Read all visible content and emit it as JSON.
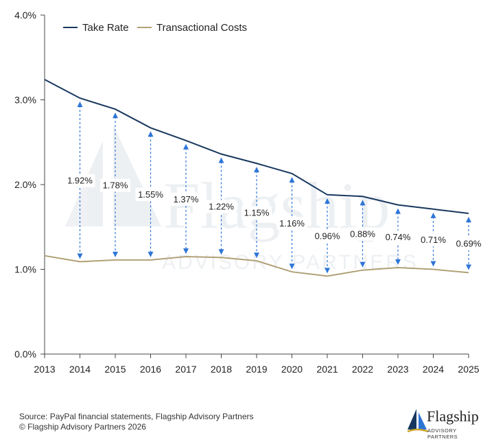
{
  "chart_data": {
    "type": "line",
    "title": "",
    "xlabel": "",
    "ylabel": "",
    "x": [
      2013,
      2014,
      2015,
      2016,
      2017,
      2018,
      2019,
      2020,
      2021,
      2022,
      2023,
      2024,
      2025
    ],
    "ylim": [
      0,
      4.0
    ],
    "y_ticks": [
      "0.0%",
      "1.0%",
      "2.0%",
      "3.0%",
      "4.0%"
    ],
    "y_tick_values": [
      0,
      1,
      2,
      3,
      4
    ],
    "legend_position": "top-left",
    "series": [
      {
        "name": "Take Rate",
        "color": "#17375e",
        "values": [
          3.24,
          3.02,
          2.89,
          2.67,
          2.52,
          2.36,
          2.25,
          2.13,
          1.88,
          1.86,
          1.76,
          1.71,
          1.66
        ]
      },
      {
        "name": "Transactional Costs",
        "color": "#b0a075",
        "values": [
          1.16,
          1.09,
          1.11,
          1.11,
          1.15,
          1.14,
          1.1,
          0.97,
          0.92,
          0.99,
          1.02,
          1.0,
          0.96
        ]
      }
    ],
    "spread": {
      "x": [
        2014,
        2015,
        2016,
        2017,
        2018,
        2019,
        2020,
        2021,
        2022,
        2023,
        2024,
        2025
      ],
      "labels": [
        "1.92%",
        "1.78%",
        "1.55%",
        "1.37%",
        "1.22%",
        "1.15%",
        "1.16%",
        "0.96%",
        "0.88%",
        "0.74%",
        "0.71%",
        "0.69%"
      ],
      "arrow_color": "#2e75d6"
    }
  },
  "watermark": {
    "word": "Flagship",
    "sub": "ADVISORY PARTNERS"
  },
  "footer": {
    "source": "Source: PayPal financial statements, Flagship Advisory Partners",
    "copyright": "© Flagship Advisory Partners 2026"
  },
  "logo": {
    "word": "Flagship",
    "sub": "ADVISORY PARTNERS",
    "colors": {
      "navy": "#17375e",
      "blue": "#2e75d6",
      "gold": "#c9a227"
    }
  }
}
